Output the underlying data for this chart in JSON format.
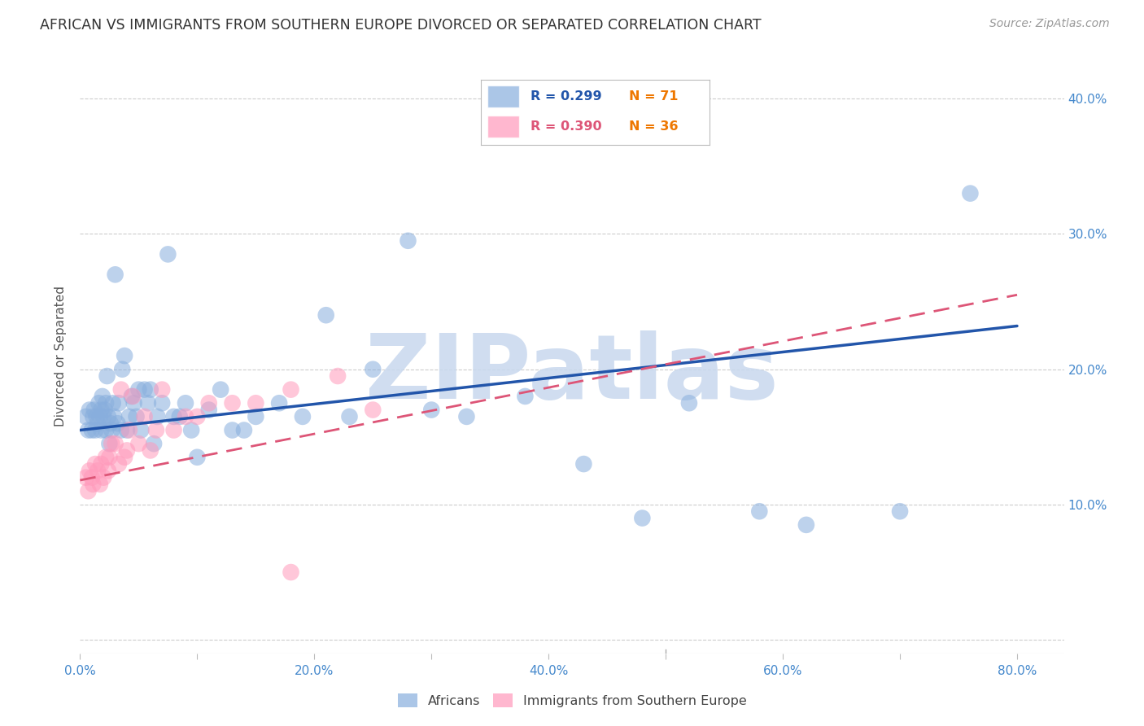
{
  "title": "AFRICAN VS IMMIGRANTS FROM SOUTHERN EUROPE DIVORCED OR SEPARATED CORRELATION CHART",
  "source": "Source: ZipAtlas.com",
  "ylabel": "Divorced or Separated",
  "x_ticks": [
    0.0,
    0.1,
    0.2,
    0.3,
    0.4,
    0.5,
    0.6,
    0.7,
    0.8
  ],
  "x_tick_labels": [
    "0.0%",
    "",
    "20.0%",
    "",
    "40.0%",
    "",
    "60.0%",
    "",
    "80.0%"
  ],
  "y_ticks": [
    0.0,
    0.1,
    0.2,
    0.3,
    0.4
  ],
  "y_tick_labels_right": [
    "",
    "10.0%",
    "20.0%",
    "30.0%",
    "40.0%"
  ],
  "xlim": [
    0.0,
    0.84
  ],
  "ylim": [
    -0.01,
    0.43
  ],
  "color_blue": "#88AEDD",
  "color_pink": "#FF99BB",
  "color_line_blue": "#2255AA",
  "color_line_pink": "#DD5577",
  "watermark": "ZIPatlas",
  "watermark_color": "#C8D8EE",
  "background": "#FFFFFF",
  "grid_color": "#CCCCCC",
  "title_color": "#333333",
  "axis_label_color": "#4488CC",
  "africans_x": [
    0.005,
    0.007,
    0.008,
    0.01,
    0.011,
    0.012,
    0.013,
    0.014,
    0.015,
    0.016,
    0.017,
    0.018,
    0.018,
    0.019,
    0.02,
    0.021,
    0.022,
    0.022,
    0.023,
    0.024,
    0.025,
    0.026,
    0.027,
    0.028,
    0.029,
    0.03,
    0.032,
    0.033,
    0.035,
    0.036,
    0.038,
    0.04,
    0.042,
    0.044,
    0.046,
    0.048,
    0.05,
    0.052,
    0.055,
    0.058,
    0.06,
    0.063,
    0.066,
    0.07,
    0.075,
    0.08,
    0.085,
    0.09,
    0.095,
    0.1,
    0.11,
    0.12,
    0.13,
    0.14,
    0.15,
    0.17,
    0.19,
    0.21,
    0.23,
    0.25,
    0.28,
    0.3,
    0.33,
    0.38,
    0.43,
    0.48,
    0.52,
    0.58,
    0.62,
    0.7,
    0.76
  ],
  "africans_y": [
    0.165,
    0.155,
    0.17,
    0.155,
    0.165,
    0.17,
    0.155,
    0.165,
    0.16,
    0.175,
    0.165,
    0.155,
    0.17,
    0.18,
    0.165,
    0.17,
    0.155,
    0.175,
    0.195,
    0.165,
    0.145,
    0.16,
    0.155,
    0.175,
    0.165,
    0.27,
    0.16,
    0.175,
    0.155,
    0.2,
    0.21,
    0.155,
    0.165,
    0.18,
    0.175,
    0.165,
    0.185,
    0.155,
    0.185,
    0.175,
    0.185,
    0.145,
    0.165,
    0.175,
    0.285,
    0.165,
    0.165,
    0.175,
    0.155,
    0.135,
    0.17,
    0.185,
    0.155,
    0.155,
    0.165,
    0.175,
    0.165,
    0.24,
    0.165,
    0.2,
    0.295,
    0.17,
    0.165,
    0.18,
    0.13,
    0.09,
    0.175,
    0.095,
    0.085,
    0.095,
    0.33
  ],
  "southern_x": [
    0.005,
    0.007,
    0.008,
    0.01,
    0.011,
    0.013,
    0.015,
    0.017,
    0.018,
    0.02,
    0.022,
    0.024,
    0.025,
    0.027,
    0.03,
    0.033,
    0.035,
    0.038,
    0.04,
    0.042,
    0.045,
    0.05,
    0.055,
    0.06,
    0.065,
    0.07,
    0.08,
    0.09,
    0.1,
    0.11,
    0.13,
    0.15,
    0.18,
    0.22,
    0.25,
    0.18
  ],
  "southern_y": [
    0.12,
    0.11,
    0.125,
    0.12,
    0.115,
    0.13,
    0.125,
    0.115,
    0.13,
    0.12,
    0.135,
    0.125,
    0.135,
    0.145,
    0.145,
    0.13,
    0.185,
    0.135,
    0.14,
    0.155,
    0.18,
    0.145,
    0.165,
    0.14,
    0.155,
    0.185,
    0.155,
    0.165,
    0.165,
    0.175,
    0.175,
    0.175,
    0.185,
    0.195,
    0.17,
    0.05
  ],
  "blue_line_x0": 0.0,
  "blue_line_x1": 0.8,
  "blue_line_y0": 0.155,
  "blue_line_y1": 0.232,
  "pink_line_x0": 0.0,
  "pink_line_x1": 0.8,
  "pink_line_y0": 0.118,
  "pink_line_y1": 0.255
}
